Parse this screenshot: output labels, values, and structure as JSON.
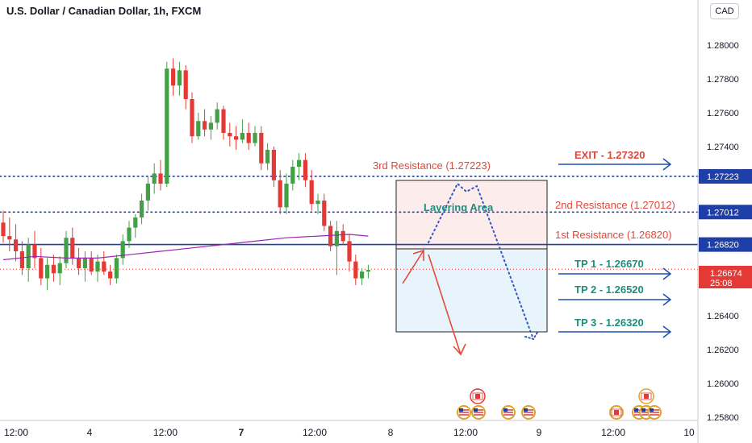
{
  "header": {
    "title": "U.S. Dollar / Canadian Dollar, 1h, FXCM",
    "currency": "CAD"
  },
  "colors": {
    "up": "#43a047",
    "down": "#e53935",
    "ma": "#9c27b0",
    "resistance": "#1e3ea8",
    "target_arrow": "#1e4fb0",
    "resistance_text": "#e0473a",
    "tp_text": "#1b8f7c",
    "exit_text": "#e0473a",
    "price_tag": "#e53935",
    "axis_text": "#131722"
  },
  "price_axis": {
    "labels": [
      "1.28000",
      "1.27800",
      "1.27600",
      "1.27400",
      "1.26400",
      "1.26200",
      "1.26000",
      "1.25800"
    ],
    "tags": [
      {
        "text": "1.27223",
        "style": "highlight"
      },
      {
        "text": "1.27012",
        "style": "highlight"
      },
      {
        "text": "1.26820",
        "style": "highlight"
      }
    ],
    "current_price": "1.26674",
    "countdown": "25:08"
  },
  "time_axis": {
    "labels": [
      "12:00",
      "4",
      "12:00",
      "7",
      "12:00",
      "8",
      "12:00",
      "9",
      "12:00",
      "10"
    ],
    "bold": [
      "7"
    ]
  },
  "annotations": {
    "resistance_3": "3rd Resistance (1.27223)",
    "resistance_2": "2nd Resistance (1.27012)",
    "resistance_1": "1st Resistance (1.26820)",
    "exit": "EXIT - 1.27320",
    "tp1": "TP 1 - 1.26670",
    "tp2": "TP 2 - 1.26520",
    "tp3": "TP 3 - 1.26320",
    "layering": "Layering Area"
  },
  "chart_data": {
    "type": "candlestick",
    "title": "U.S. Dollar / Canadian Dollar, 1h, FXCM",
    "ylim": [
      1.2578,
      1.2828
    ],
    "candles": [
      [
        1.2695,
        1.2702,
        1.2683,
        1.2687
      ],
      [
        1.2687,
        1.2698,
        1.2678,
        1.2685
      ],
      [
        1.2685,
        1.2694,
        1.2672,
        1.2678
      ],
      [
        1.2678,
        1.2684,
        1.2664,
        1.2668
      ],
      [
        1.2668,
        1.2686,
        1.266,
        1.2682
      ],
      [
        1.2682,
        1.269,
        1.2668,
        1.2674
      ],
      [
        1.2674,
        1.268,
        1.2658,
        1.2662
      ],
      [
        1.2662,
        1.2674,
        1.2655,
        1.267
      ],
      [
        1.267,
        1.2676,
        1.266,
        1.2665
      ],
      [
        1.2665,
        1.2675,
        1.2658,
        1.2671
      ],
      [
        1.2671,
        1.269,
        1.2668,
        1.2686
      ],
      [
        1.2686,
        1.2692,
        1.267,
        1.2674
      ],
      [
        1.2674,
        1.268,
        1.2664,
        1.2668
      ],
      [
        1.2668,
        1.2678,
        1.266,
        1.2674
      ],
      [
        1.2674,
        1.2678,
        1.2664,
        1.2666
      ],
      [
        1.2666,
        1.2676,
        1.266,
        1.2672
      ],
      [
        1.2672,
        1.2678,
        1.2664,
        1.2666
      ],
      [
        1.2666,
        1.267,
        1.2658,
        1.2662
      ],
      [
        1.2662,
        1.2676,
        1.2659,
        1.2674
      ],
      [
        1.2674,
        1.2688,
        1.267,
        1.2684
      ],
      [
        1.2684,
        1.2696,
        1.268,
        1.2692
      ],
      [
        1.2692,
        1.27,
        1.2686,
        1.2698
      ],
      [
        1.2698,
        1.2712,
        1.2694,
        1.2708
      ],
      [
        1.2708,
        1.2722,
        1.2702,
        1.2718
      ],
      [
        1.2718,
        1.273,
        1.2712,
        1.2724
      ],
      [
        1.2724,
        1.2732,
        1.2714,
        1.2718
      ],
      [
        1.2718,
        1.279,
        1.2716,
        1.2786
      ],
      [
        1.2786,
        1.2792,
        1.277,
        1.2776
      ],
      [
        1.2776,
        1.279,
        1.277,
        1.2785
      ],
      [
        1.2785,
        1.2788,
        1.2762,
        1.2768
      ],
      [
        1.2768,
        1.2772,
        1.2742,
        1.2746
      ],
      [
        1.2746,
        1.276,
        1.2744,
        1.2755
      ],
      [
        1.2755,
        1.2762,
        1.2746,
        1.275
      ],
      [
        1.275,
        1.2758,
        1.2744,
        1.2754
      ],
      [
        1.2754,
        1.2766,
        1.275,
        1.2762
      ],
      [
        1.2762,
        1.2764,
        1.2744,
        1.2748
      ],
      [
        1.2748,
        1.2754,
        1.274,
        1.2746
      ],
      [
        1.2746,
        1.2752,
        1.2738,
        1.2744
      ],
      [
        1.2744,
        1.2756,
        1.2742,
        1.2748
      ],
      [
        1.2748,
        1.2754,
        1.2738,
        1.2742
      ],
      [
        1.2742,
        1.2752,
        1.274,
        1.2748
      ],
      [
        1.2748,
        1.2752,
        1.2726,
        1.273
      ],
      [
        1.273,
        1.2742,
        1.2726,
        1.2738
      ],
      [
        1.2738,
        1.274,
        1.2716,
        1.272
      ],
      [
        1.272,
        1.2726,
        1.27,
        1.2704
      ],
      [
        1.2704,
        1.2724,
        1.27,
        1.2718
      ],
      [
        1.2718,
        1.2732,
        1.2714,
        1.2728
      ],
      [
        1.2728,
        1.2736,
        1.272,
        1.2732
      ],
      [
        1.2732,
        1.2736,
        1.2716,
        1.272
      ],
      [
        1.272,
        1.2726,
        1.2702,
        1.2706
      ],
      [
        1.2706,
        1.2712,
        1.27,
        1.2708
      ],
      [
        1.2708,
        1.2712,
        1.269,
        1.2693
      ],
      [
        1.2693,
        1.2696,
        1.2678,
        1.2681
      ],
      [
        1.2681,
        1.2696,
        1.2664,
        1.269
      ],
      [
        1.269,
        1.2694,
        1.2682,
        1.2684
      ],
      [
        1.2684,
        1.2688,
        1.2666,
        1.2672
      ],
      [
        1.2672,
        1.2676,
        1.2658,
        1.2662
      ],
      [
        1.2662,
        1.2668,
        1.2658,
        1.2666
      ],
      [
        1.2666,
        1.267,
        1.2662,
        1.2667
      ]
    ],
    "moving_average": [
      [
        0,
        1.2673
      ],
      [
        5,
        1.2675
      ],
      [
        10,
        1.2674
      ],
      [
        15,
        1.2674
      ],
      [
        20,
        1.2676
      ],
      [
        25,
        1.2678
      ],
      [
        30,
        1.268
      ],
      [
        35,
        1.2682
      ],
      [
        40,
        1.2684
      ],
      [
        45,
        1.2686
      ],
      [
        50,
        1.2687
      ],
      [
        55,
        1.2688
      ],
      [
        58,
        1.2687
      ]
    ],
    "levels": [
      {
        "value": 1.27223,
        "style": "dotted"
      },
      {
        "value": 1.27012,
        "style": "dotted"
      },
      {
        "value": 1.2682,
        "style": "solid"
      },
      {
        "value": 1.26674,
        "style": "dotted-red"
      }
    ]
  }
}
